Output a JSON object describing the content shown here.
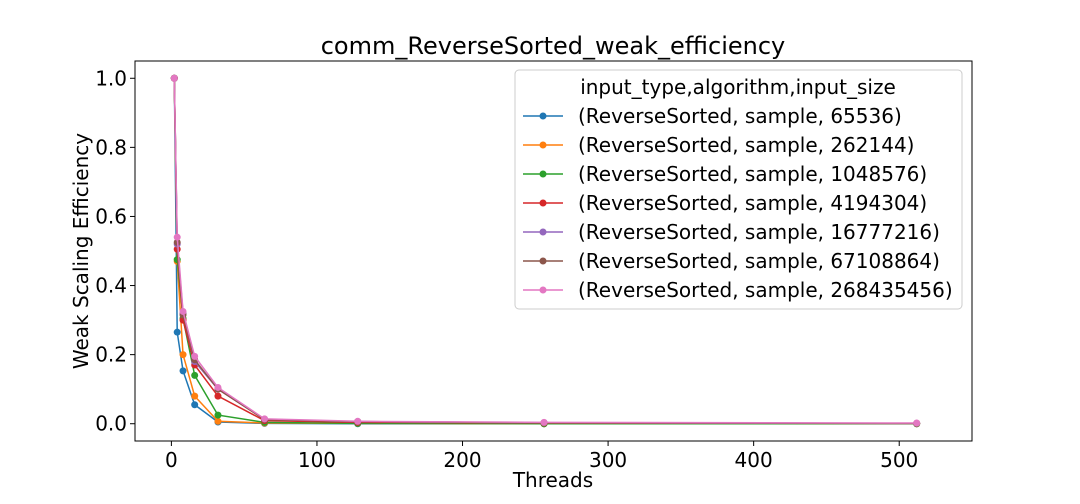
{
  "chart_data": {
    "type": "line",
    "title": "comm_ReverseSorted_weak_efficiency",
    "xlabel": "Threads",
    "ylabel": "Weak Scaling Efficiency",
    "xlim": [
      -25,
      550
    ],
    "ylim": [
      -0.05,
      1.05
    ],
    "xticks": [
      0,
      100,
      200,
      300,
      400,
      500
    ],
    "yticks": [
      0.0,
      0.2,
      0.4,
      0.6,
      0.8,
      1.0
    ],
    "xtick_labels": [
      "0",
      "100",
      "200",
      "300",
      "400",
      "500"
    ],
    "ytick_labels": [
      "0.0",
      "0.2",
      "0.4",
      "0.6",
      "0.8",
      "1.0"
    ],
    "legend_title": "input_type,algorithm,input_size",
    "legend_location": "top-right",
    "grid": false,
    "x": [
      2,
      4,
      8,
      16,
      32,
      64,
      128,
      256,
      512
    ],
    "series": [
      {
        "name": "(ReverseSorted, sample, 65536)",
        "color": "#1f77b4",
        "values": [
          1.0,
          0.265,
          0.153,
          0.055,
          0.005,
          0.001,
          0.0,
          0.0,
          0.0
        ]
      },
      {
        "name": "(ReverseSorted, sample, 262144)",
        "color": "#ff7f0e",
        "values": [
          1.0,
          0.47,
          0.2,
          0.08,
          0.007,
          0.002,
          0.001,
          0.0,
          0.0
        ]
      },
      {
        "name": "(ReverseSorted, sample, 1048576)",
        "color": "#2ca02c",
        "values": [
          1.0,
          0.475,
          0.305,
          0.14,
          0.025,
          0.004,
          0.001,
          0.0,
          0.0
        ]
      },
      {
        "name": "(ReverseSorted, sample, 4194304)",
        "color": "#d62728",
        "values": [
          1.0,
          0.505,
          0.3,
          0.17,
          0.08,
          0.009,
          0.004,
          0.002,
          0.001
        ]
      },
      {
        "name": "(ReverseSorted, sample, 16777216)",
        "color": "#9467bd",
        "values": [
          1.0,
          0.52,
          0.32,
          0.18,
          0.1,
          0.013,
          0.006,
          0.003,
          0.001
        ]
      },
      {
        "name": "(ReverseSorted, sample, 67108864)",
        "color": "#8c564b",
        "values": [
          1.0,
          0.525,
          0.315,
          0.185,
          0.1,
          0.012,
          0.006,
          0.003,
          0.001
        ]
      },
      {
        "name": "(ReverseSorted, sample, 268435456)",
        "color": "#e377c2",
        "values": [
          1.0,
          0.54,
          0.325,
          0.195,
          0.105,
          0.014,
          0.007,
          0.004,
          0.002
        ]
      }
    ]
  }
}
